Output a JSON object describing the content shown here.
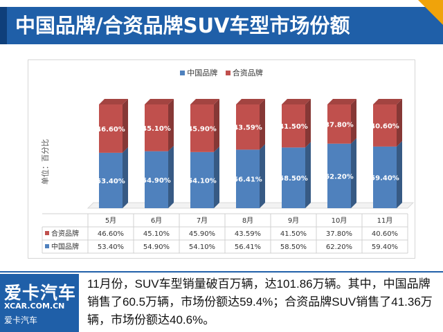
{
  "header": {
    "title": "中国品牌/合资品牌SUV车型市场份额"
  },
  "colors": {
    "title_bar": "#1f5fa8",
    "accent": "#f0a30a",
    "china_series": "#4f81bd",
    "jv_series": "#c0504d"
  },
  "chart_data": {
    "type": "bar",
    "stacked": true,
    "ylabel": "单位：百分比",
    "categories": [
      "5月",
      "6月",
      "7月",
      "8月",
      "9月",
      "10月",
      "11月"
    ],
    "series": [
      {
        "name": "中国品牌",
        "values": [
          53.4,
          54.9,
          54.1,
          56.41,
          58.5,
          62.2,
          59.4
        ],
        "labels": [
          "53.40%",
          "54.90%",
          "54.10%",
          "56.41%",
          "58.50%",
          "62.20%",
          "59.40%"
        ]
      },
      {
        "name": "合资品牌",
        "values": [
          46.6,
          45.1,
          45.9,
          43.59,
          41.5,
          37.8,
          40.6
        ],
        "labels": [
          "46.60%",
          "45.10%",
          "45.90%",
          "43.59%",
          "41.50%",
          "37.80%",
          "40.60%"
        ]
      }
    ],
    "legend_position": "top",
    "data_table": true
  },
  "footer": {
    "logo_main": "爱卡汽车",
    "logo_url": "XCAR.COM.CN",
    "logo_sub": "爱卡汽车",
    "text": "11月份，SUV车型销量破百万辆，达101.86万辆。其中，中国品牌销售了60.5万辆，市场份额达59.4%；合资品牌SUV销售了41.36万辆，市场份额达40.6%。"
  }
}
